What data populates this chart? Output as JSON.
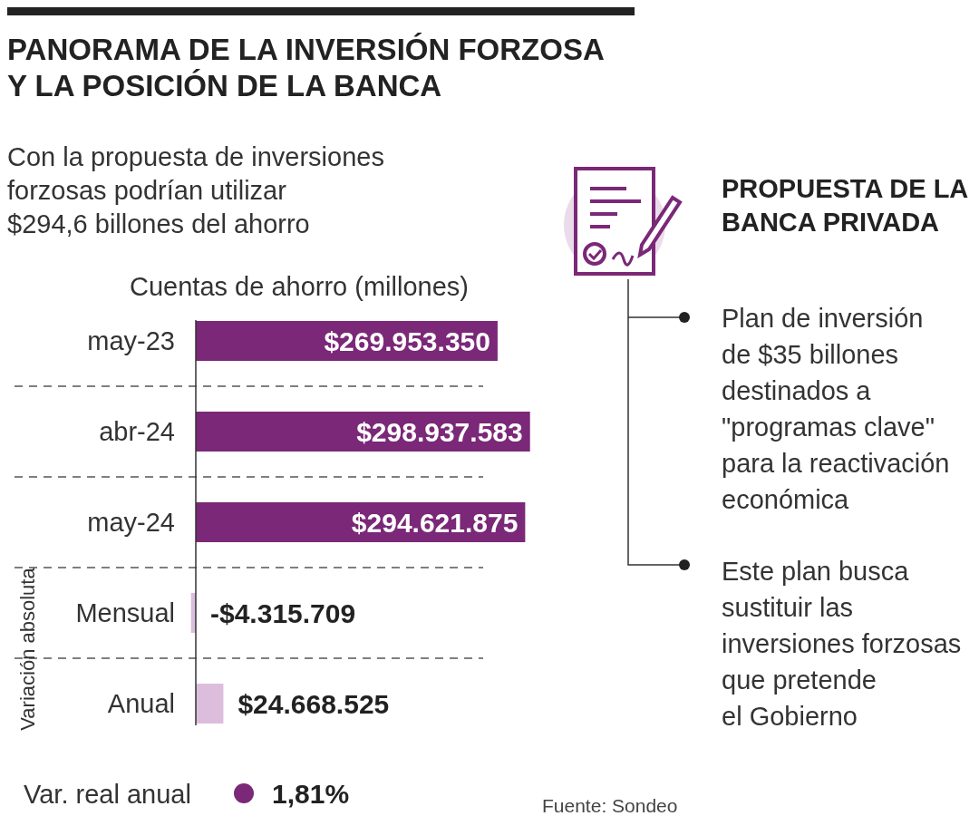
{
  "chart_data": {
    "type": "bar",
    "orientation": "horizontal",
    "title": "PANORAMA DE LA INVERSIÓN FORZOSA Y LA POSICIÓN DE LA BANCA",
    "subtitle": "Con la propuesta de inversiones forzosas podrían utilizar $294,6 billones del ahorro",
    "xlabel": "Cuentas de ahorro (millones)",
    "categories": [
      "may-23",
      "abr-24",
      "may-24",
      "Mensual",
      "Anual"
    ],
    "values": [
      269953350,
      298937583,
      294621875,
      -4315709,
      24668525
    ],
    "colors": [
      "#7a2877",
      "#7a2877",
      "#7a2877",
      "#dcbedc",
      "#dcbedc"
    ],
    "value_labels": [
      "$269.953.350",
      "$298.937.583",
      "$294.621.875",
      "-$4.315.709",
      "$24.668.525"
    ],
    "xlim": [
      -5000000,
      300000000
    ],
    "annotations": [
      "Variación absoluta",
      "Var. real anual",
      "1,81%",
      "PROPUESTA DE LA BANCA PRIVADA",
      "Plan de inversión\nde $35 billones\ndestinados a\n\"programas clave\"\npara la reactivación\neconómica",
      "Este plan busca\nsustituir las\ninversiones forzosas\nque pretende\nel Gobierno",
      "Fuente: Sondeo"
    ]
  }
}
